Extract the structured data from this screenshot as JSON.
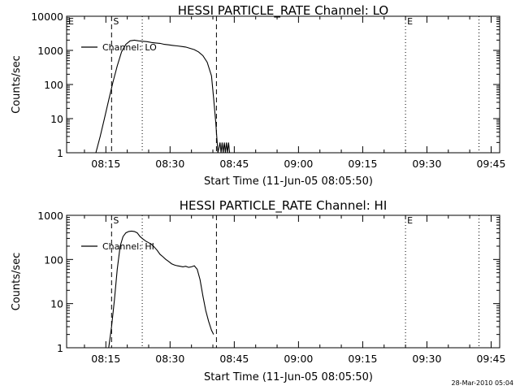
{
  "chart_data": [
    {
      "type": "line",
      "title": "HESSI PARTICLE_RATE Channel: LO",
      "xlabel": "Start Time (11-Jun-05 08:05:50)",
      "ylabel": "Counts/sec",
      "yscale": "log",
      "ylim": [
        1,
        10000
      ],
      "xlim": [
        "08:05:50",
        "09:47:00"
      ],
      "x_ticks": [
        "08:15",
        "08:30",
        "08:45",
        "09:00",
        "09:15",
        "09:30",
        "09:45"
      ],
      "y_ticks": [
        "1",
        "10",
        "100",
        "1000",
        "10000"
      ],
      "legend": {
        "label": "Channel: LO",
        "position": "top-left"
      },
      "markers": [
        {
          "label": "S",
          "time": "08:16:20",
          "style": "dashed"
        },
        {
          "label": "",
          "time": "08:40:50",
          "style": "dashed"
        },
        {
          "label": "",
          "time": "08:23:30",
          "style": "dotted"
        },
        {
          "label": "E",
          "time": "09:25:00",
          "style": "dotted"
        },
        {
          "label": "",
          "time": "09:42:10",
          "style": "dotted"
        },
        {
          "label": "E",
          "time": "08:05:50",
          "style": "dotted"
        }
      ],
      "series": [
        {
          "x": [
            "08:12:40",
            "08:13:40",
            "08:14:40",
            "08:15:40",
            "08:16:40",
            "08:17:40",
            "08:18:40",
            "08:19:40",
            "08:20:40",
            "08:21:40",
            "08:22:40",
            "08:23:40",
            "08:24:40",
            "08:25:40",
            "08:26:40",
            "08:27:40",
            "08:28:40",
            "08:29:40",
            "08:30:40",
            "08:31:40",
            "08:32:40",
            "08:33:40",
            "08:34:40",
            "08:35:40",
            "08:36:40",
            "08:37:40",
            "08:38:40",
            "08:39:40",
            "08:40:10",
            "08:40:40",
            "08:41:10",
            "08:41:40",
            "08:41:55",
            "08:42:10",
            "08:42:25",
            "08:42:40",
            "08:42:55",
            "08:43:10",
            "08:43:25",
            "08:43:40",
            "08:43:55"
          ],
          "y": [
            1,
            3,
            10,
            35,
            120,
            350,
            900,
            1500,
            1900,
            2000,
            1900,
            1850,
            1800,
            1700,
            1650,
            1600,
            1500,
            1450,
            1400,
            1350,
            1300,
            1250,
            1150,
            1050,
            900,
            700,
            450,
            180,
            40,
            8,
            1,
            2,
            1,
            2,
            1,
            2,
            1,
            2,
            1,
            2,
            1
          ]
        }
      ]
    },
    {
      "type": "line",
      "title": "HESSI PARTICLE_RATE Channel: HI",
      "xlabel": "Start Time (11-Jun-05 08:05:50)",
      "ylabel": "Counts/sec",
      "yscale": "log",
      "ylim": [
        1,
        1000
      ],
      "xlim": [
        "08:05:50",
        "09:47:00"
      ],
      "x_ticks": [
        "08:15",
        "08:30",
        "08:45",
        "09:00",
        "09:15",
        "09:30",
        "09:45"
      ],
      "y_ticks": [
        "1",
        "10",
        "100",
        "1000"
      ],
      "legend": {
        "label": "Channel: HI",
        "position": "top-left"
      },
      "markers": [
        {
          "label": "S",
          "time": "08:16:20",
          "style": "dashed"
        },
        {
          "label": "",
          "time": "08:40:50",
          "style": "dashed"
        },
        {
          "label": "",
          "time": "08:23:30",
          "style": "dotted"
        },
        {
          "label": "E",
          "time": "09:25:00",
          "style": "dotted"
        },
        {
          "label": "",
          "time": "09:42:10",
          "style": "dotted"
        },
        {
          "label": "",
          "time": "08:05:50",
          "style": "dotted"
        }
      ],
      "series": [
        {
          "x": [
            "08:15:40",
            "08:16:20",
            "08:17:00",
            "08:17:40",
            "08:18:20",
            "08:19:00",
            "08:19:40",
            "08:20:20",
            "08:21:00",
            "08:21:40",
            "08:22:20",
            "08:23:00",
            "08:23:40",
            "08:24:20",
            "08:25:00",
            "08:25:40",
            "08:26:20",
            "08:27:00",
            "08:27:40",
            "08:28:20",
            "08:29:00",
            "08:29:40",
            "08:30:20",
            "08:31:00",
            "08:31:40",
            "08:32:20",
            "08:33:00",
            "08:33:40",
            "08:34:20",
            "08:35:00",
            "08:35:40",
            "08:36:20",
            "08:37:00",
            "08:37:40",
            "08:38:20",
            "08:39:00",
            "08:39:40",
            "08:40:10"
          ],
          "y": [
            1,
            3,
            12,
            60,
            200,
            330,
            400,
            430,
            440,
            430,
            400,
            330,
            290,
            260,
            240,
            220,
            190,
            160,
            130,
            115,
            100,
            90,
            80,
            75,
            72,
            70,
            68,
            70,
            66,
            68,
            72,
            60,
            35,
            15,
            7,
            4,
            2.5,
            2
          ]
        }
      ]
    }
  ],
  "footer_timestamp": "28-Mar-2010 05:04"
}
